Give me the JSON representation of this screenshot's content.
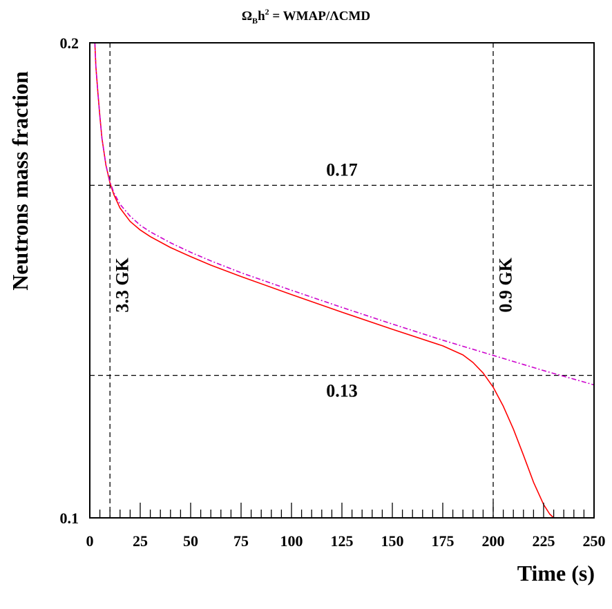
{
  "chart_data": {
    "type": "line",
    "title": {
      "omega": "Ω",
      "omega_sub": "B",
      "h": "h",
      "h_sup": "2",
      "rest": " = WMAP/ΛCMD"
    },
    "xlabel": "Time (s)",
    "ylabel": "Neutrons mass fraction",
    "xlim": [
      0,
      250
    ],
    "ylim": [
      0.1,
      0.2
    ],
    "x_ticks": [
      0,
      25,
      50,
      75,
      100,
      125,
      150,
      175,
      200,
      225,
      250
    ],
    "y_tick_labels": [
      {
        "value": 0.2,
        "label": "0.2"
      },
      {
        "value": 0.1,
        "label": "0.1"
      }
    ],
    "grid": false,
    "legend": "none",
    "series": [
      {
        "color": "#ff0000",
        "style": "solid",
        "x": [
          2.5,
          3,
          4,
          5,
          6,
          8,
          10,
          12,
          15,
          20,
          25,
          30,
          40,
          50,
          60,
          75,
          100,
          125,
          150,
          175,
          185,
          190,
          195,
          200,
          205,
          210,
          215,
          220,
          225,
          228,
          230
        ],
        "y": [
          0.2,
          0.195,
          0.1895,
          0.1845,
          0.18,
          0.1742,
          0.1705,
          0.168,
          0.1652,
          0.1624,
          0.1606,
          0.1592,
          0.1569,
          0.155,
          0.1532,
          0.1508,
          0.147,
          0.1433,
          0.1397,
          0.1362,
          0.1343,
          0.1327,
          0.1305,
          0.1275,
          0.1235,
          0.1187,
          0.1132,
          0.1075,
          0.1028,
          0.1008,
          0.1
        ]
      },
      {
        "color": "#cc00cc",
        "style": "dash-dot",
        "x": [
          2.5,
          3,
          4,
          5,
          6,
          8,
          10,
          12,
          15,
          20,
          25,
          30,
          40,
          50,
          60,
          75,
          100,
          125,
          150,
          175,
          200,
          225,
          250
        ],
        "y": [
          0.2,
          0.195,
          0.1895,
          0.1845,
          0.18,
          0.1742,
          0.1707,
          0.1684,
          0.166,
          0.1635,
          0.1616,
          0.1602,
          0.1579,
          0.1559,
          0.1541,
          0.1516,
          0.1479,
          0.1443,
          0.1408,
          0.1374,
          0.1342,
          0.131,
          0.128
        ]
      }
    ],
    "reference_lines": [
      {
        "orientation": "vertical",
        "value": 10
      },
      {
        "orientation": "vertical",
        "value": 200
      },
      {
        "orientation": "horizontal",
        "value": 0.17
      },
      {
        "orientation": "horizontal",
        "value": 0.13
      }
    ],
    "annotations": [
      {
        "text": "0.17",
        "x": 125,
        "y": 0.172
      },
      {
        "text": "0.13",
        "x": 125,
        "y": 0.1255
      },
      {
        "text": "3.3 GK",
        "x": 19,
        "y": 0.149,
        "rotate": -90
      },
      {
        "text": "0.9 GK",
        "x": 209,
        "y": 0.149,
        "rotate": -90
      }
    ]
  }
}
